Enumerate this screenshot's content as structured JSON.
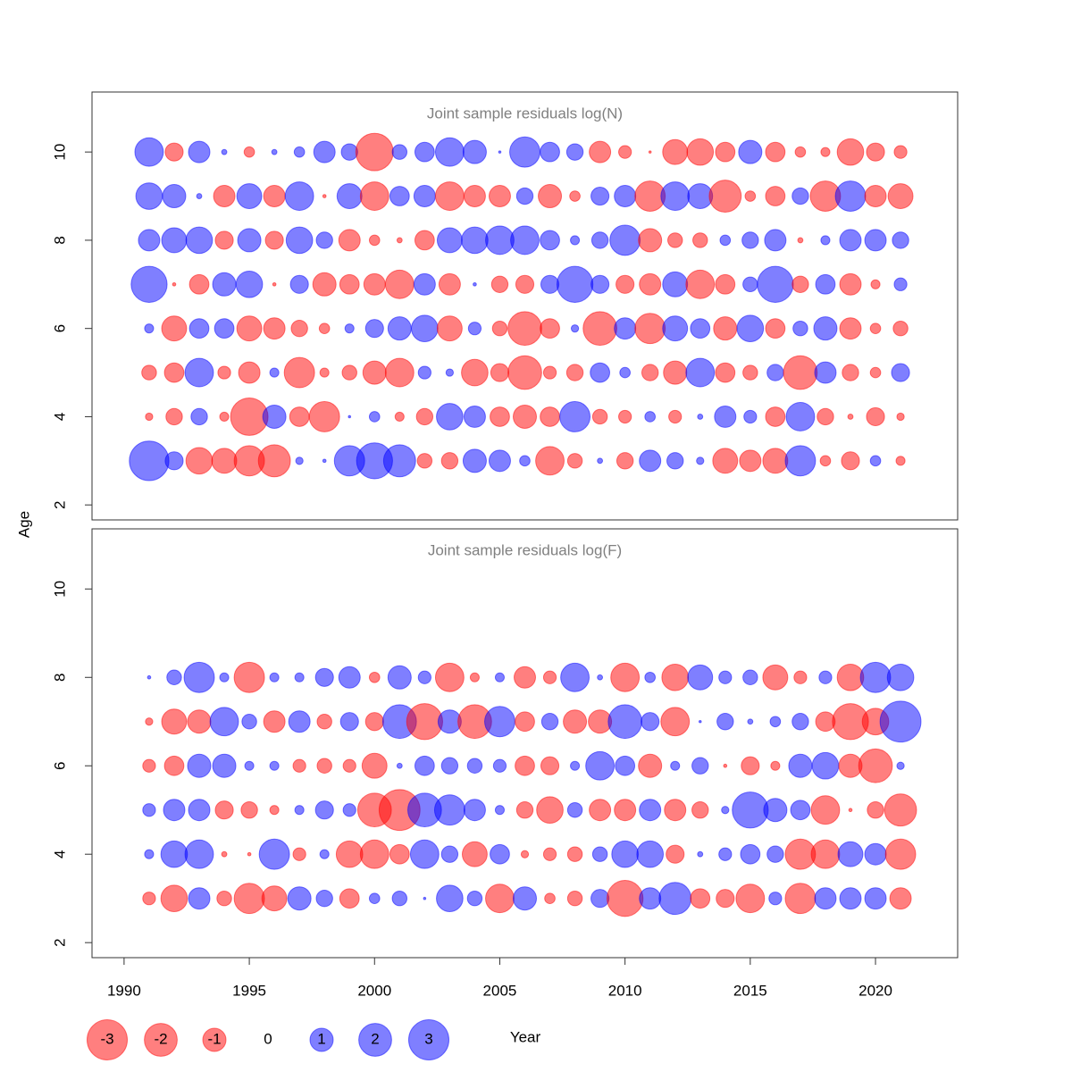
{
  "chart_data": {
    "type": "bubble",
    "xlabel": "Year",
    "ylabel": "Age",
    "x": [
      1991,
      1992,
      1993,
      1994,
      1995,
      1996,
      1997,
      1998,
      1999,
      2000,
      2001,
      2002,
      2003,
      2004,
      2005,
      2006,
      2007,
      2008,
      2009,
      2010,
      2011,
      2012,
      2013,
      2014,
      2015,
      2016,
      2017,
      2018,
      2019,
      2020,
      2021
    ],
    "xlim": [
      1988.72,
      2023.28
    ],
    "xticks": [
      1990,
      1995,
      2000,
      2005,
      2010,
      2015,
      2020
    ],
    "positive_color": "#0000ff",
    "negative_color": "#ff0000",
    "opacity": 0.5,
    "legend": {
      "values": [
        -3,
        -2,
        -1,
        0,
        1,
        2,
        3
      ]
    },
    "panels": [
      {
        "title": "Joint sample residuals log(N)",
        "ylim": [
          1.66,
          11.36
        ],
        "yticks": [
          2,
          4,
          6,
          8,
          10
        ],
        "ages": [
          10,
          9,
          8,
          7,
          6,
          5,
          4,
          3
        ],
        "values": [
          [
            1.5,
            -0.6,
            0.85,
            0.05,
            -0.2,
            0.05,
            0.2,
            0.85,
            0.5,
            -2.6,
            0.4,
            0.7,
            1.5,
            1,
            0.01,
            1.7,
            0.7,
            0.5,
            -0.85,
            -0.3,
            -0.01,
            -1.15,
            -1.3,
            -0.7,
            1,
            -0.7,
            -0.2,
            -0.15,
            -1.3,
            -0.6,
            -0.3
          ],
          [
            1.3,
            1,
            0.05,
            -0.85,
            1.15,
            -0.85,
            1.5,
            -0.02,
            1.15,
            -1.5,
            0.7,
            0.85,
            -1.5,
            -0.85,
            -0.85,
            0.5,
            -1,
            -0.2,
            0.6,
            0.85,
            -1.7,
            1.5,
            1.15,
            -1.9,
            -0.2,
            -0.7,
            0.5,
            -1.7,
            1.7,
            -0.85,
            -1.15
          ],
          [
            0.85,
            1.15,
            1.3,
            -0.6,
            1,
            -0.6,
            1.3,
            0.5,
            -0.85,
            -0.2,
            -0.05,
            -0.7,
            1.15,
            1.3,
            1.5,
            1.5,
            0.7,
            0.15,
            0.5,
            1.7,
            -1,
            -0.4,
            -0.4,
            0.2,
            0.5,
            0.85,
            -0.05,
            0.15,
            0.85,
            0.85,
            0.5
          ],
          [
            2.4,
            -0.02,
            -0.7,
            1,
            1.3,
            -0.02,
            0.6,
            -1,
            -0.7,
            -0.85,
            -1.5,
            0.85,
            -0.85,
            0.02,
            -0.5,
            -0.6,
            0.6,
            2.4,
            0.6,
            -0.6,
            -0.85,
            1.15,
            -1.5,
            -0.7,
            0.4,
            2.4,
            -0.5,
            0.7,
            -0.85,
            -0.15,
            0.3
          ],
          [
            0.15,
            -1.15,
            0.7,
            0.7,
            -1.15,
            -0.85,
            -0.5,
            -0.2,
            0.15,
            0.6,
            1,
            1.3,
            -1.15,
            0.3,
            -0.4,
            -2.1,
            -0.7,
            0.1,
            -2.1,
            0.85,
            -1.7,
            1.15,
            0.7,
            -1,
            1.3,
            -0.7,
            0.4,
            1,
            -0.85,
            -0.2,
            -0.4
          ],
          [
            -0.4,
            -0.7,
            1.5,
            -0.3,
            -0.85,
            0.15,
            -1.7,
            -0.15,
            -0.4,
            -1,
            -1.5,
            0.3,
            0.1,
            -1.3,
            -0.6,
            -2.1,
            -0.3,
            -0.5,
            0.7,
            0.2,
            -0.5,
            -1,
            1.5,
            -0.7,
            -0.4,
            0.5,
            -2.1,
            0.85,
            -0.5,
            -0.2,
            0.6
          ],
          [
            -0.1,
            -0.5,
            0.5,
            -0.15,
            -2.6,
            1,
            -0.7,
            -1.7,
            0.01,
            0.2,
            -0.15,
            -0.5,
            1.3,
            0.85,
            -0.7,
            -1,
            -0.7,
            1.7,
            -0.4,
            -0.3,
            0.2,
            -0.3,
            0.05,
            0.85,
            0.3,
            -0.7,
            1.5,
            -0.5,
            -0.05,
            -0.6,
            -0.1
          ],
          [
            2.9,
            0.6,
            -1.3,
            -1.15,
            -1.7,
            -1.9,
            0.1,
            0.02,
            1.7,
            2.4,
            1.9,
            -0.4,
            -0.5,
            1,
            0.85,
            0.2,
            -1.5,
            -0.4,
            0.05,
            -0.5,
            0.85,
            0.5,
            0.1,
            -1.15,
            -0.85,
            -1.15,
            1.7,
            -0.2,
            -0.6,
            0.2,
            -0.15
          ]
        ]
      },
      {
        "title": "Joint sample residuals log(F)",
        "ylim": [
          1.66,
          11.36
        ],
        "yticks": [
          2,
          4,
          6,
          8,
          10
        ],
        "ages": [
          8,
          7,
          6,
          5,
          4,
          3
        ],
        "values": [
          [
            0.02,
            0.4,
            1.7,
            0.15,
            -1.7,
            0.15,
            0.15,
            0.6,
            0.85,
            -0.2,
            1,
            0.3,
            -1.5,
            -0.15,
            0.15,
            -0.85,
            -0.3,
            1.5,
            0.05,
            -1.5,
            0.2,
            -1.3,
            1.15,
            0.3,
            0.4,
            -1.15,
            -0.3,
            0.3,
            -1.3,
            1.7,
            1.3
          ],
          [
            -0.1,
            -1.15,
            -1,
            1.5,
            0.4,
            -0.85,
            0.85,
            -0.4,
            0.6,
            -0.6,
            2.1,
            -2.4,
            1,
            -2.1,
            1.7,
            -0.7,
            0.5,
            -1,
            -1,
            2.1,
            0.6,
            -1.5,
            0.01,
            0.5,
            0.05,
            0.2,
            0.5,
            -0.7,
            -2.4,
            -1.3,
            3.1
          ],
          [
            -0.3,
            -0.7,
            1,
            1,
            0.15,
            0.15,
            -0.3,
            -0.4,
            -0.3,
            -1.15,
            0.05,
            0.7,
            0.5,
            0.4,
            0.3,
            -0.7,
            -0.6,
            0.15,
            1.5,
            0.7,
            -1,
            0.15,
            0.5,
            -0.02,
            -0.6,
            -0.15,
            1,
            1.3,
            -1,
            -2.1,
            0.1
          ],
          [
            0.3,
            0.85,
            0.85,
            -0.6,
            -0.5,
            -0.15,
            0.15,
            0.6,
            0.3,
            -2.1,
            -3.1,
            2.1,
            1.7,
            0.85,
            0.15,
            -0.5,
            -1.3,
            0.4,
            -0.85,
            -0.85,
            0.85,
            -0.85,
            -0.5,
            0.1,
            2.4,
            1,
            0.7,
            -1.5,
            -0.02,
            -0.5,
            -1.9
          ],
          [
            0.15,
            1.3,
            1.5,
            -0.05,
            -0.02,
            1.7,
            -0.3,
            0.15,
            -1.3,
            -1.5,
            -0.7,
            1.5,
            0.5,
            -1.15,
            0.7,
            -0.1,
            -0.3,
            -0.4,
            0.4,
            1.3,
            1.3,
            -0.6,
            0.05,
            0.3,
            0.7,
            0.5,
            -1.7,
            -1.5,
            1.15,
            0.85,
            -1.7
          ],
          [
            -0.3,
            -1.3,
            0.85,
            -0.4,
            -1.7,
            -1.15,
            1,
            0.5,
            -0.7,
            0.2,
            0.4,
            0.01,
            1.3,
            0.4,
            -1.5,
            1,
            -0.2,
            -0.4,
            0.6,
            -2.4,
            0.85,
            1.9,
            -0.7,
            -0.6,
            -1.5,
            0.3,
            -1.7,
            0.85,
            0.85,
            0.85,
            -0.85
          ]
        ]
      }
    ]
  }
}
